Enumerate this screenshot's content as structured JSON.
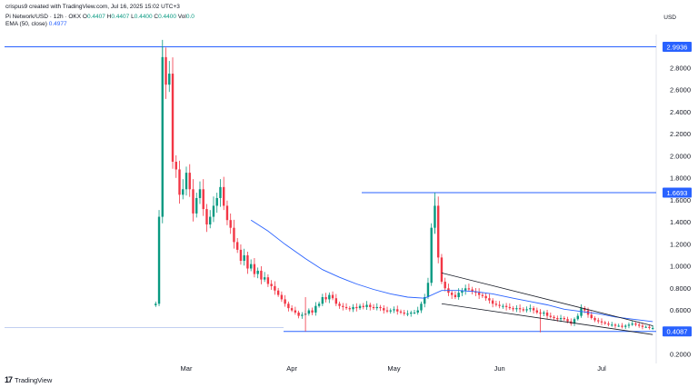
{
  "header": {
    "credit": "crispus9 created with TradingView.com, Jul 16, 2025 15:02 UTC+3",
    "symbol": "Pi Network/USD · 12h · OKX",
    "open_label": "O",
    "open_value": "0.4407",
    "high_label": "H",
    "high_value": "0.4407",
    "low_label": "L",
    "low_value": "0.4400",
    "close_label": "C",
    "close_value": "0.4400",
    "vol_label": "Vol",
    "vol_value": "0.0",
    "ema_label": "EMA (50, close)",
    "ema_value": "0.4977"
  },
  "currency": "USD",
  "watermark": "TradingView",
  "colors": {
    "up": "#089981",
    "down": "#f23645",
    "ema": "#2962ff",
    "level_line": "#2962ff",
    "channel": "#131722",
    "price_tag_bg": "#2962ff"
  },
  "chart_data": {
    "type": "candlestick",
    "y_axis": {
      "ticks": [
        "2.8000",
        "2.6000",
        "2.4000",
        "2.2000",
        "2.0000",
        "1.8000",
        "1.6000",
        "1.4000",
        "1.2000",
        "1.0000",
        "0.8000",
        "0.6000",
        "0.2000"
      ],
      "range": [
        0.13,
        3.05
      ]
    },
    "x_axis": {
      "ticks": [
        "Mar",
        "Apr",
        "May",
        "Jun",
        "Jul"
      ]
    },
    "price_levels": [
      {
        "label": "2.9936",
        "value": 2.9936
      },
      {
        "label": "1.6693",
        "value": 1.6693
      },
      {
        "label": "0.4087",
        "value": 0.4087
      }
    ],
    "ema_period": 50,
    "candles_daily_close": [
      [
        "2025-02-20",
        0.66
      ],
      [
        "2025-02-21",
        1.45
      ],
      [
        "2025-02-22",
        2.9
      ],
      [
        "2025-02-23",
        2.65
      ],
      [
        "2025-02-24",
        2.75
      ],
      [
        "2025-02-25",
        1.95
      ],
      [
        "2025-02-26",
        1.88
      ],
      [
        "2025-02-27",
        1.65
      ],
      [
        "2025-02-28",
        1.7
      ],
      [
        "2025-03-01",
        1.85
      ],
      [
        "2025-03-02",
        1.7
      ],
      [
        "2025-03-03",
        1.48
      ],
      [
        "2025-03-04",
        1.62
      ],
      [
        "2025-03-05",
        1.7
      ],
      [
        "2025-03-06",
        1.52
      ],
      [
        "2025-03-07",
        1.38
      ],
      [
        "2025-03-08",
        1.45
      ],
      [
        "2025-03-09",
        1.55
      ],
      [
        "2025-03-10",
        1.62
      ],
      [
        "2025-03-11",
        1.72
      ],
      [
        "2025-03-12",
        1.55
      ],
      [
        "2025-03-13",
        1.42
      ],
      [
        "2025-03-14",
        1.35
      ],
      [
        "2025-03-15",
        1.22
      ],
      [
        "2025-03-16",
        1.15
      ],
      [
        "2025-03-17",
        1.05
      ],
      [
        "2025-03-18",
        1.1
      ],
      [
        "2025-03-19",
        0.98
      ],
      [
        "2025-03-20",
        1.02
      ],
      [
        "2025-03-21",
        0.93
      ],
      [
        "2025-03-22",
        0.96
      ],
      [
        "2025-03-23",
        0.88
      ],
      [
        "2025-03-24",
        0.9
      ],
      [
        "2025-03-25",
        0.84
      ],
      [
        "2025-03-26",
        0.82
      ],
      [
        "2025-03-27",
        0.78
      ],
      [
        "2025-03-28",
        0.74
      ],
      [
        "2025-03-29",
        0.7
      ],
      [
        "2025-03-30",
        0.66
      ],
      [
        "2025-03-31",
        0.62
      ],
      [
        "2025-04-01",
        0.6
      ],
      [
        "2025-04-02",
        0.58
      ],
      [
        "2025-04-03",
        0.55
      ],
      [
        "2025-04-04",
        0.56
      ],
      [
        "2025-04-05",
        0.57
      ],
      [
        "2025-04-06",
        0.6
      ],
      [
        "2025-04-07",
        0.58
      ],
      [
        "2025-04-08",
        0.64
      ],
      [
        "2025-04-09",
        0.66
      ],
      [
        "2025-04-10",
        0.72
      ],
      [
        "2025-04-11",
        0.7
      ],
      [
        "2025-04-12",
        0.74
      ],
      [
        "2025-04-13",
        0.71
      ],
      [
        "2025-04-14",
        0.66
      ],
      [
        "2025-04-15",
        0.64
      ],
      [
        "2025-04-16",
        0.63
      ],
      [
        "2025-04-17",
        0.62
      ],
      [
        "2025-04-18",
        0.61
      ],
      [
        "2025-04-19",
        0.63
      ],
      [
        "2025-04-20",
        0.62
      ],
      [
        "2025-04-21",
        0.64
      ],
      [
        "2025-04-22",
        0.63
      ],
      [
        "2025-04-23",
        0.65
      ],
      [
        "2025-04-24",
        0.63
      ],
      [
        "2025-04-25",
        0.62
      ],
      [
        "2025-04-26",
        0.63
      ],
      [
        "2025-04-27",
        0.62
      ],
      [
        "2025-04-28",
        0.6
      ],
      [
        "2025-04-29",
        0.59
      ],
      [
        "2025-04-30",
        0.6
      ],
      [
        "2025-05-01",
        0.61
      ],
      [
        "2025-05-02",
        0.59
      ],
      [
        "2025-05-03",
        0.58
      ],
      [
        "2025-05-04",
        0.57
      ],
      [
        "2025-05-05",
        0.57
      ],
      [
        "2025-05-06",
        0.58
      ],
      [
        "2025-05-07",
        0.58
      ],
      [
        "2025-05-08",
        0.6
      ],
      [
        "2025-05-09",
        0.66
      ],
      [
        "2025-05-10",
        0.72
      ],
      [
        "2025-05-11",
        0.85
      ],
      [
        "2025-05-12",
        1.35
      ],
      [
        "2025-05-13",
        1.55
      ],
      [
        "2025-05-14",
        1.08
      ],
      [
        "2025-05-15",
        0.86
      ],
      [
        "2025-05-16",
        0.8
      ],
      [
        "2025-05-17",
        0.76
      ],
      [
        "2025-05-18",
        0.74
      ],
      [
        "2025-05-19",
        0.72
      ],
      [
        "2025-05-20",
        0.76
      ],
      [
        "2025-05-21",
        0.78
      ],
      [
        "2025-05-22",
        0.8
      ],
      [
        "2025-05-23",
        0.79
      ],
      [
        "2025-05-24",
        0.77
      ],
      [
        "2025-05-25",
        0.76
      ],
      [
        "2025-05-26",
        0.74
      ],
      [
        "2025-05-27",
        0.73
      ],
      [
        "2025-05-28",
        0.71
      ],
      [
        "2025-05-29",
        0.69
      ],
      [
        "2025-05-30",
        0.66
      ],
      [
        "2025-05-31",
        0.65
      ],
      [
        "2025-06-01",
        0.64
      ],
      [
        "2025-06-02",
        0.64
      ],
      [
        "2025-06-03",
        0.63
      ],
      [
        "2025-06-04",
        0.62
      ],
      [
        "2025-06-05",
        0.61
      ],
      [
        "2025-06-06",
        0.62
      ],
      [
        "2025-06-07",
        0.61
      ],
      [
        "2025-06-08",
        0.6
      ],
      [
        "2025-06-09",
        0.61
      ],
      [
        "2025-06-10",
        0.62
      ],
      [
        "2025-06-11",
        0.6
      ],
      [
        "2025-06-12",
        0.58
      ],
      [
        "2025-06-13",
        0.57
      ],
      [
        "2025-06-14",
        0.58
      ],
      [
        "2025-06-15",
        0.55
      ],
      [
        "2025-06-16",
        0.54
      ],
      [
        "2025-06-17",
        0.53
      ],
      [
        "2025-06-18",
        0.52
      ],
      [
        "2025-06-19",
        0.53
      ],
      [
        "2025-06-20",
        0.52
      ],
      [
        "2025-06-21",
        0.5
      ],
      [
        "2025-06-22",
        0.48
      ],
      [
        "2025-06-23",
        0.52
      ],
      [
        "2025-06-24",
        0.55
      ],
      [
        "2025-06-25",
        0.62
      ],
      [
        "2025-06-26",
        0.6
      ],
      [
        "2025-06-27",
        0.56
      ],
      [
        "2025-06-28",
        0.53
      ],
      [
        "2025-06-29",
        0.51
      ],
      [
        "2025-06-30",
        0.5
      ],
      [
        "2025-07-01",
        0.49
      ],
      [
        "2025-07-02",
        0.48
      ],
      [
        "2025-07-03",
        0.47
      ],
      [
        "2025-07-04",
        0.47
      ],
      [
        "2025-07-05",
        0.46
      ],
      [
        "2025-07-06",
        0.46
      ],
      [
        "2025-07-07",
        0.45
      ],
      [
        "2025-07-08",
        0.46
      ],
      [
        "2025-07-09",
        0.47
      ],
      [
        "2025-07-10",
        0.48
      ],
      [
        "2025-07-11",
        0.47
      ],
      [
        "2025-07-12",
        0.46
      ],
      [
        "2025-07-13",
        0.45
      ],
      [
        "2025-07-14",
        0.45
      ],
      [
        "2025-07-15",
        0.44
      ],
      [
        "2025-07-16",
        0.44
      ]
    ],
    "ema_daily": [
      [
        "2025-03-20",
        1.42
      ],
      [
        "2025-03-25",
        1.32
      ],
      [
        "2025-03-30",
        1.2
      ],
      [
        "2025-04-05",
        1.07
      ],
      [
        "2025-04-10",
        0.97
      ],
      [
        "2025-04-15",
        0.9
      ],
      [
        "2025-04-20",
        0.84
      ],
      [
        "2025-04-25",
        0.79
      ],
      [
        "2025-04-30",
        0.75
      ],
      [
        "2025-05-05",
        0.72
      ],
      [
        "2025-05-10",
        0.71
      ],
      [
        "2025-05-15",
        0.78
      ],
      [
        "2025-05-20",
        0.78
      ],
      [
        "2025-05-25",
        0.77
      ],
      [
        "2025-05-30",
        0.75
      ],
      [
        "2025-06-05",
        0.71
      ],
      [
        "2025-06-10",
        0.68
      ],
      [
        "2025-06-15",
        0.65
      ],
      [
        "2025-06-20",
        0.61
      ],
      [
        "2025-06-25",
        0.59
      ],
      [
        "2025-06-30",
        0.57
      ],
      [
        "2025-07-05",
        0.54
      ],
      [
        "2025-07-10",
        0.52
      ],
      [
        "2025-07-16",
        0.4977
      ]
    ],
    "channel": {
      "upper": [
        [
          "2025-05-15",
          0.94
        ],
        [
          "2025-07-16",
          0.46
        ]
      ],
      "lower": [
        [
          "2025-05-15",
          0.66
        ],
        [
          "2025-07-16",
          0.38
        ]
      ]
    }
  }
}
